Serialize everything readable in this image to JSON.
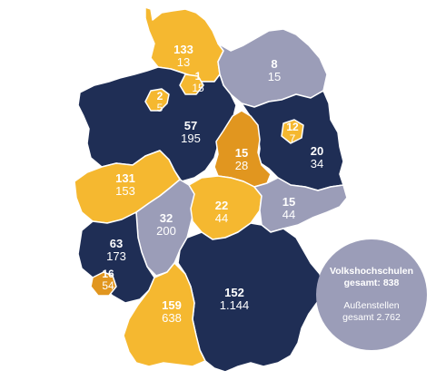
{
  "colors": {
    "navy": "#1f2e55",
    "yellow": "#f5b830",
    "grey": "#9b9db8",
    "orange": "#e1961f",
    "border": "#ffffff"
  },
  "states": {
    "schleswig_holstein": {
      "vhs": "133",
      "aussenstellen": "13",
      "color": "#f5b830"
    },
    "hamburg": {
      "vhs": "1",
      "aussenstellen": "15",
      "color": "#f5b830"
    },
    "mecklenburg_vorpommern": {
      "vhs": "8",
      "aussenstellen": "15",
      "color": "#9b9db8"
    },
    "bremen": {
      "vhs": "2",
      "aussenstellen": "5",
      "color": "#f5b830"
    },
    "niedersachsen": {
      "vhs": "57",
      "aussenstellen": "195",
      "color": "#1f2e55"
    },
    "berlin": {
      "vhs": "12",
      "aussenstellen": "7",
      "color": "#f5b830"
    },
    "brandenburg": {
      "vhs": "20",
      "aussenstellen": "34",
      "color": "#1f2e55"
    },
    "sachsen_anhalt": {
      "vhs": "15",
      "aussenstellen": "28",
      "color": "#e1961f"
    },
    "nordrhein_westfalen": {
      "vhs": "131",
      "aussenstellen": "153",
      "color": "#f5b830"
    },
    "hessen": {
      "vhs": "32",
      "aussenstellen": "200",
      "color": "#9b9db8"
    },
    "thueringen": {
      "vhs": "22",
      "aussenstellen": "44",
      "color": "#f5b830"
    },
    "sachsen": {
      "vhs": "15",
      "aussenstellen": "44",
      "color": "#9b9db8"
    },
    "rheinland_pfalz": {
      "vhs": "63",
      "aussenstellen": "173",
      "color": "#1f2e55"
    },
    "saarland": {
      "vhs": "16",
      "aussenstellen": "54",
      "color": "#e1961f"
    },
    "bayern": {
      "vhs": "152",
      "aussenstellen": "1.144",
      "color": "#1f2e55"
    },
    "baden_wuerttemberg": {
      "vhs": "159",
      "aussenstellen": "638",
      "color": "#f5b830"
    }
  },
  "summary": {
    "line1": "Volkshochschulen",
    "line2": "gesamt: 838",
    "line3": "Außenstellen",
    "line4": "gesamt 2.762"
  }
}
